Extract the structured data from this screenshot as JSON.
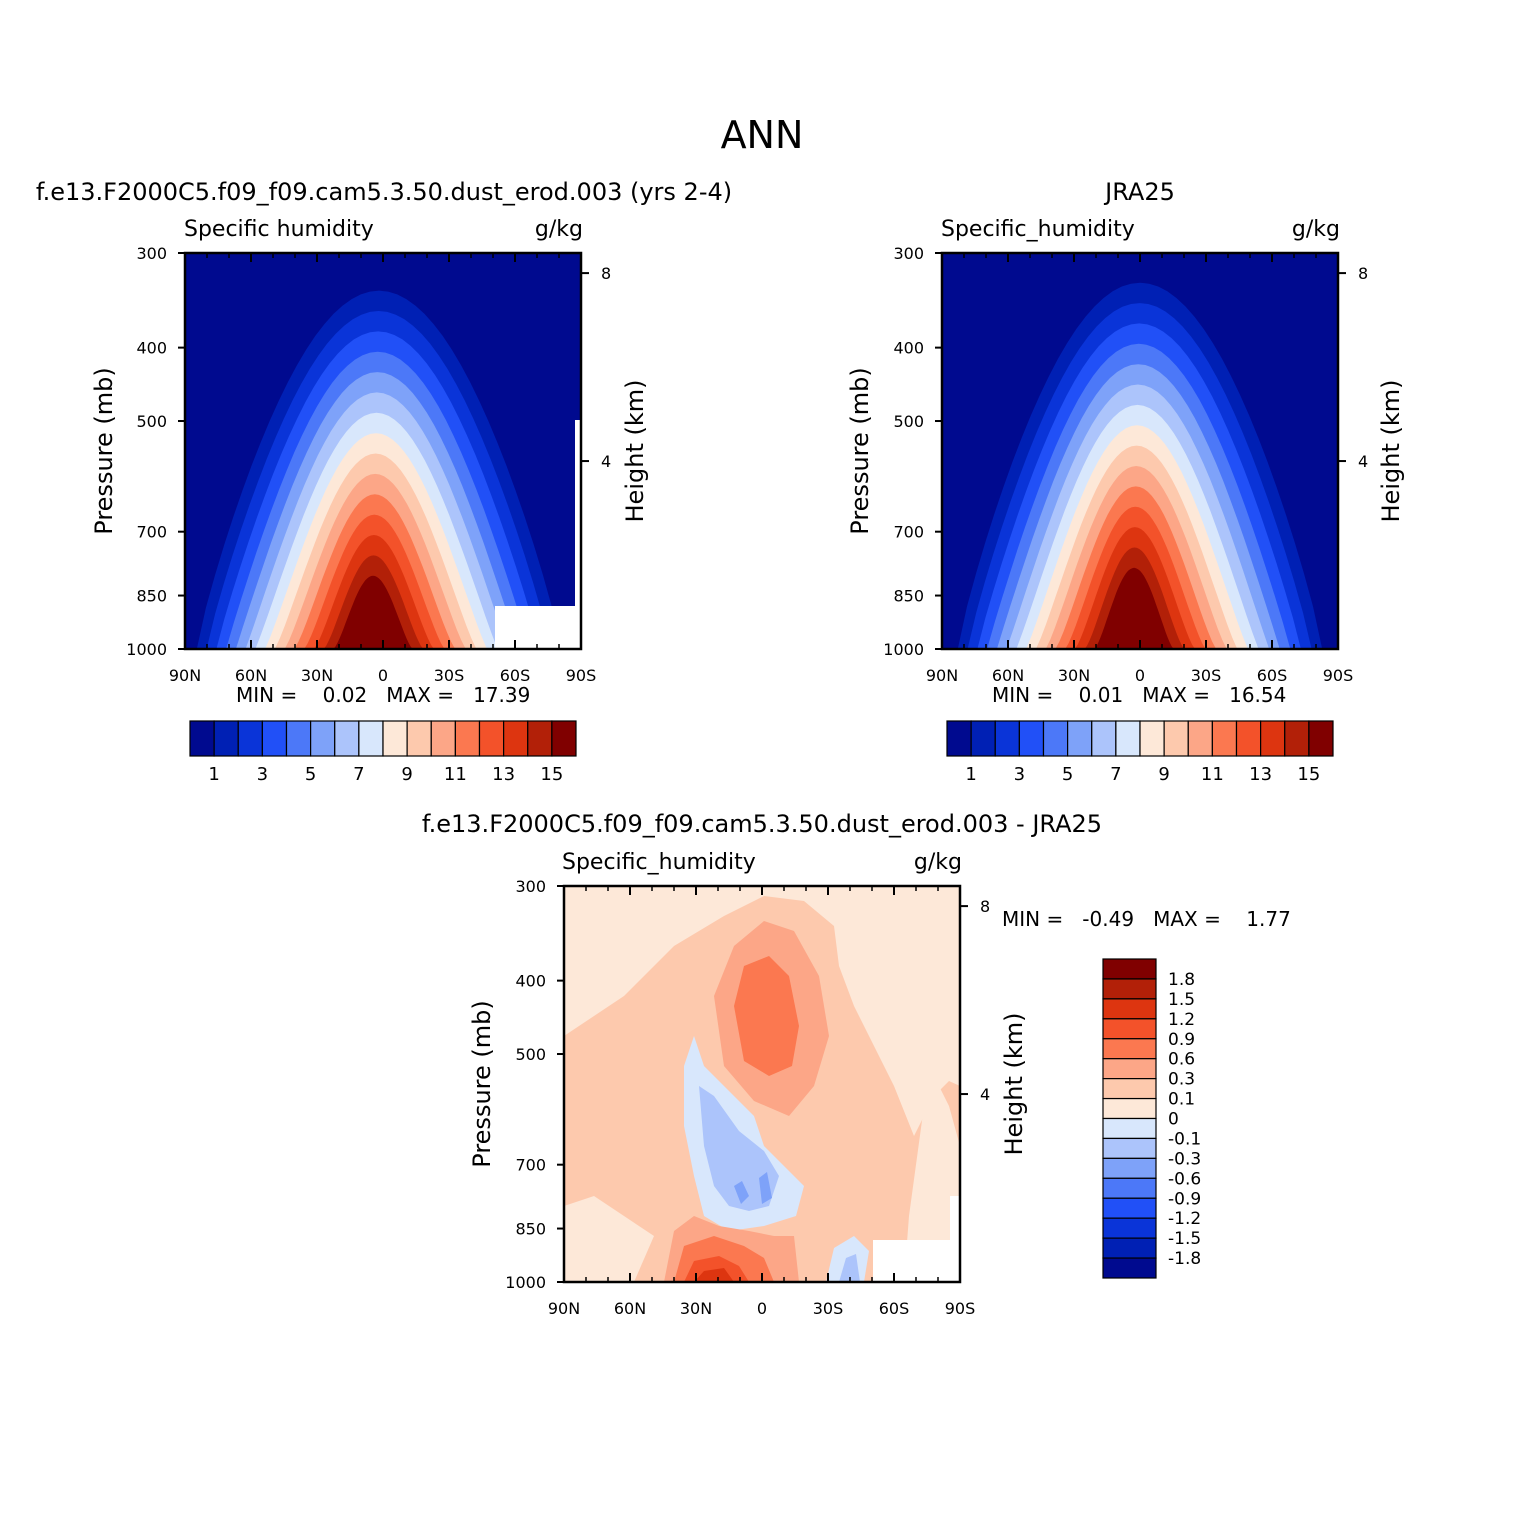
{
  "title": "ANN",
  "colors": {
    "abs_scale": [
      "#000a8f",
      "#0020b4",
      "#0a34d8",
      "#2150f7",
      "#4c78f8",
      "#7ea2f9",
      "#acc4fb",
      "#d8e7fc",
      "#fde8d8",
      "#fdc9ad",
      "#fca687",
      "#fb7850",
      "#f3522a",
      "#dd3510",
      "#b22008",
      "#800000"
    ],
    "diff_scale": [
      "#000a8f",
      "#0020b4",
      "#0a34d8",
      "#2150f7",
      "#4c78f8",
      "#7ea2f9",
      "#acc4fb",
      "#d8e7fc",
      "#fde8d8",
      "#fdc9ad",
      "#fca687",
      "#fb7850",
      "#f3522a",
      "#dd3510",
      "#b22008",
      "#800000"
    ]
  },
  "panels": [
    {
      "title": "f.e13.F2000C5.f09_f09.cam5.3.50.dust_erod.003 (yrs 2-4)",
      "var_label": "Specific humidity",
      "units": "g/kg",
      "ylabel": "Pressure (mb)",
      "ylabel_right": "Height (km)",
      "min_max": "MIN =    0.02   MAX =   17.39",
      "colorbar_labels": [
        "1",
        "3",
        "5",
        "7",
        "9",
        "11",
        "13",
        "15"
      ]
    },
    {
      "title": "JRA25",
      "var_label": "Specific_humidity",
      "units": "g/kg",
      "ylabel": "Pressure (mb)",
      "ylabel_right": "Height (km)",
      "min_max": "MIN =    0.01   MAX =   16.54",
      "colorbar_labels": [
        "1",
        "3",
        "5",
        "7",
        "9",
        "11",
        "13",
        "15"
      ]
    },
    {
      "title": "f.e13.F2000C5.f09_f09.cam5.3.50.dust_erod.003 - JRA25",
      "var_label": "Specific_humidity",
      "units": "g/kg",
      "ylabel": "Pressure (mb)",
      "ylabel_right": "Height (km)",
      "min_max": "MIN =   -0.49   MAX =    1.77",
      "colorbar_labels": [
        "1.8",
        "1.5",
        "1.2",
        "0.9",
        "0.6",
        "0.3",
        "0.1",
        "0",
        "-0.1",
        "-0.3",
        "-0.6",
        "-0.9",
        "-1.2",
        "-1.5",
        "-1.8"
      ]
    }
  ],
  "chart_data": [
    {
      "type": "heatmap",
      "title": "f.e13.F2000C5.f09_f09.cam5.3.50.dust_erod.003 (yrs 2-4)",
      "subtitle": "Specific humidity",
      "units": "g/kg",
      "xlabel": "",
      "ylabel": "Pressure (mb)",
      "ylabel_right": "Height (km)",
      "x_ticks": [
        "90N",
        "60N",
        "30N",
        "0",
        "30S",
        "60S",
        "90S"
      ],
      "y_ticks": [
        "300",
        "400",
        "500",
        "700",
        "850",
        "1000"
      ],
      "height_ticks": [
        "8",
        "4"
      ],
      "y_scale": "log",
      "ylim": [
        1000,
        300
      ],
      "contour_levels": [
        1,
        2,
        3,
        4,
        5,
        6,
        7,
        8,
        9,
        10,
        11,
        12,
        13,
        14,
        15
      ],
      "min": 0.02,
      "max": 17.39,
      "peak_location": "0, 1000 mb"
    },
    {
      "type": "heatmap",
      "title": "JRA25",
      "subtitle": "Specific_humidity",
      "units": "g/kg",
      "xlabel": "",
      "ylabel": "Pressure (mb)",
      "ylabel_right": "Height (km)",
      "x_ticks": [
        "90N",
        "60N",
        "30N",
        "0",
        "30S",
        "60S",
        "90S"
      ],
      "y_ticks": [
        "300",
        "400",
        "500",
        "700",
        "850",
        "1000"
      ],
      "height_ticks": [
        "8",
        "4"
      ],
      "y_scale": "log",
      "ylim": [
        1000,
        300
      ],
      "contour_levels": [
        1,
        2,
        3,
        4,
        5,
        6,
        7,
        8,
        9,
        10,
        11,
        12,
        13,
        14,
        15
      ],
      "min": 0.01,
      "max": 16.54,
      "peak_location": "0, 1000 mb"
    },
    {
      "type": "heatmap",
      "title": "f.e13.F2000C5.f09_f09.cam5.3.50.dust_erod.003 - JRA25",
      "subtitle": "Specific_humidity",
      "units": "g/kg",
      "xlabel": "",
      "ylabel": "Pressure (mb)",
      "ylabel_right": "Height (km)",
      "x_ticks": [
        "90N",
        "60N",
        "30N",
        "0",
        "30S",
        "60S",
        "90S"
      ],
      "y_ticks": [
        "300",
        "400",
        "500",
        "700",
        "850",
        "1000"
      ],
      "height_ticks": [
        "8",
        "4"
      ],
      "y_scale": "log",
      "ylim": [
        1000,
        300
      ],
      "contour_levels": [
        -1.8,
        -1.5,
        -1.2,
        -0.9,
        -0.6,
        -0.3,
        -0.1,
        0,
        0.1,
        0.3,
        0.6,
        0.9,
        1.2,
        1.5,
        1.8
      ],
      "min": -0.49,
      "max": 1.77
    }
  ]
}
